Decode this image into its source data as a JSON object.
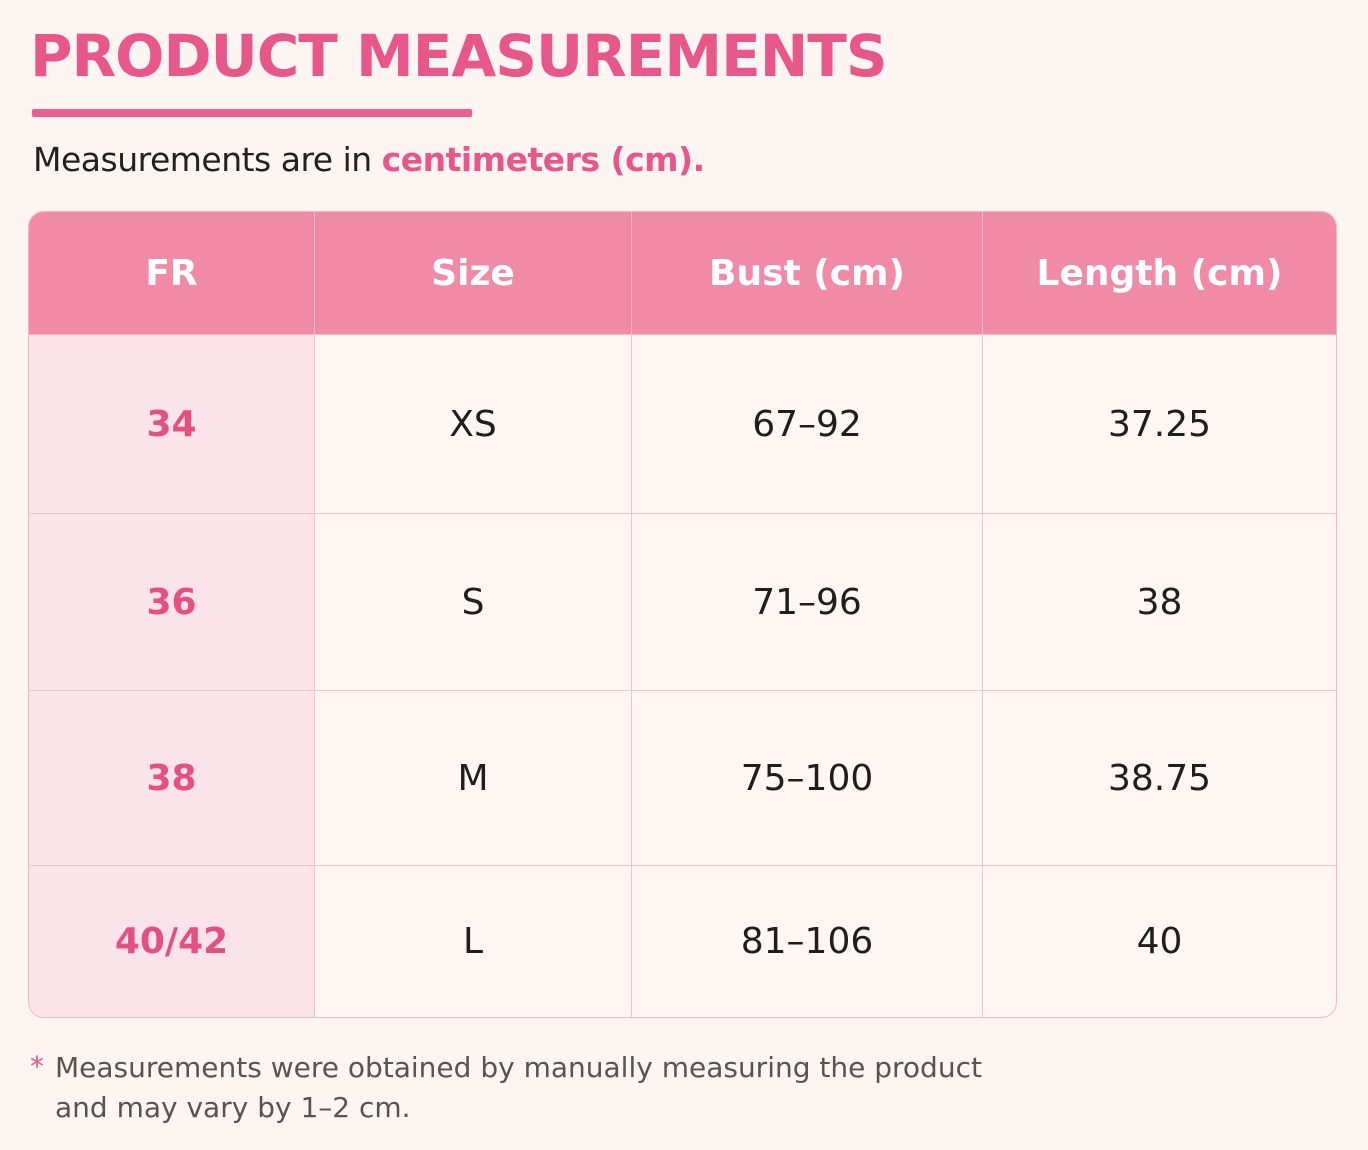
{
  "header": {
    "title": "PRODUCT MEASUREMENTS",
    "subtitle": {
      "text": "Measurements are in ",
      "highlight": "centimeters (cm)."
    }
  },
  "table": {
    "columns": [
      "FR",
      "Size",
      "Bust (cm)",
      "Length (cm)"
    ],
    "rows": [
      [
        "34",
        "XS",
        "67–92",
        "37.25"
      ],
      [
        "36",
        "S",
        "71–96",
        "38"
      ],
      [
        "38",
        "M",
        "75–100",
        "38.75"
      ],
      [
        "40/42",
        "L",
        "81–106",
        "40"
      ]
    ]
  },
  "footnote": {
    "marker": "*",
    "lines": [
      "Measurements were obtained by manually measuring the product",
      "and may vary by 1–2 cm."
    ]
  }
}
